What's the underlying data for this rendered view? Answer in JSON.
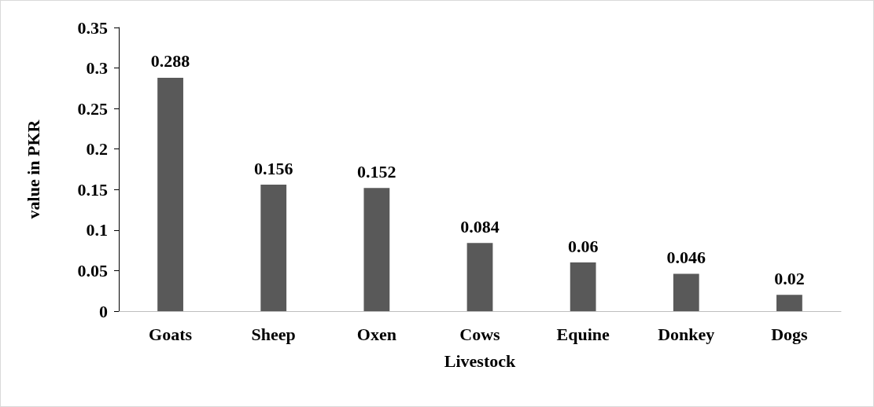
{
  "chart_data": {
    "type": "bar",
    "xlabel": "Livestock",
    "ylabel": "value in PKR",
    "categories": [
      "Goats",
      "Sheep",
      "Oxen",
      "Cows",
      "Equine",
      "Donkey",
      "Dogs"
    ],
    "values": [
      0.288,
      0.156,
      0.152,
      0.084,
      0.06,
      0.046,
      0.02
    ],
    "color": "#595959",
    "ylim": [
      0,
      0.35
    ],
    "yticks": [
      0,
      0.05,
      0.1,
      0.15,
      0.2,
      0.25,
      0.3,
      0.35
    ],
    "grid": false,
    "data_labels": true
  }
}
